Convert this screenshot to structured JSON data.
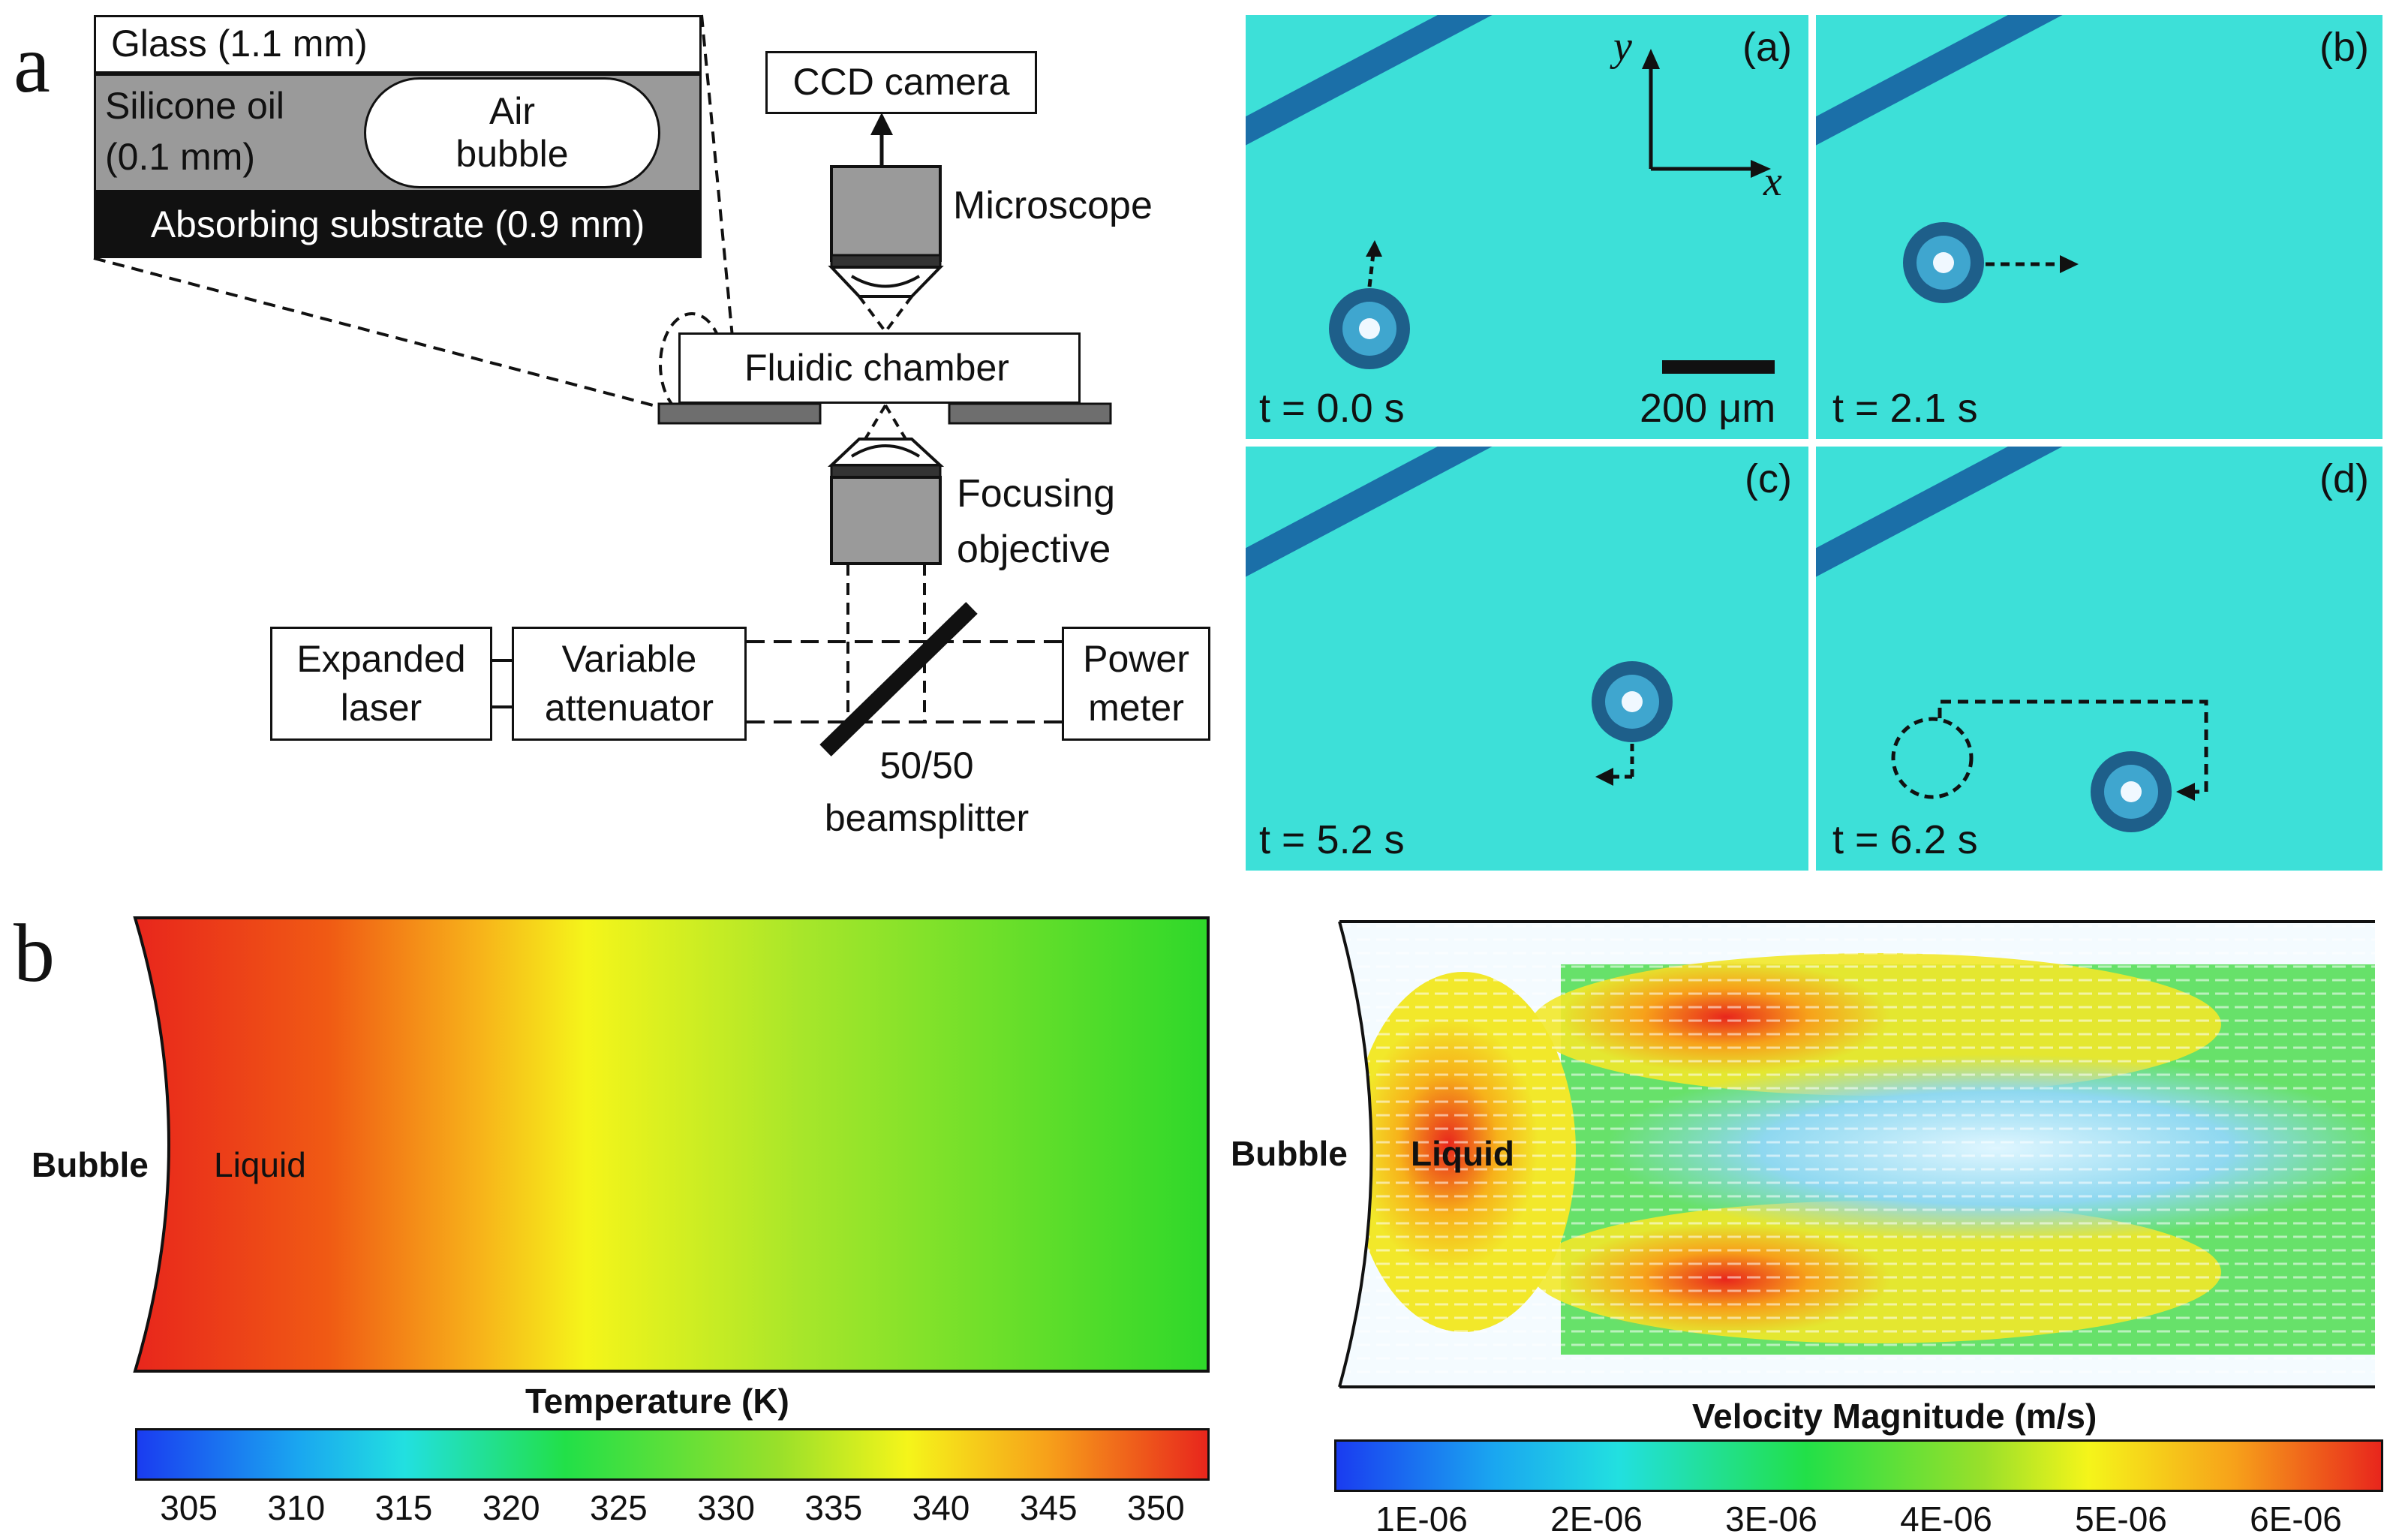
{
  "panel_labels": {
    "a": "a",
    "b": "b"
  },
  "schematic": {
    "glass": "Glass (1.1 mm)",
    "silicone_oil_line1": "Silicone oil",
    "silicone_oil_line2": "(0.1 mm)",
    "air_bubble_line1": "Air",
    "air_bubble_line2": "bubble",
    "substrate": "Absorbing substrate (0.9 mm)",
    "ccd_camera": "CCD camera",
    "microscope": "Microscope",
    "fluidic_chamber": "Fluidic chamber",
    "focusing_objective_line1": "Focusing",
    "focusing_objective_line2": "objective",
    "expanded_laser_line1": "Expanded",
    "expanded_laser_line2": "laser",
    "variable_attenuator_line1": "Variable",
    "variable_attenuator_line2": "attenuator",
    "power_meter_line1": "Power",
    "power_meter_line2": "meter",
    "beamsplitter_line1": "50/50",
    "beamsplitter_line2": "beamsplitter"
  },
  "frames": [
    {
      "label": "(a)",
      "time": "t = 0.0 s"
    },
    {
      "label": "(b)",
      "time": "t = 2.1 s"
    },
    {
      "label": "(c)",
      "time": "t = 5.2 s"
    },
    {
      "label": "(d)",
      "time": "t = 6.2 s"
    }
  ],
  "axes": {
    "y": "y",
    "x": "x"
  },
  "scale_bar": "200 μm",
  "temperature_plot": {
    "bubble": "Bubble",
    "liquid": "Liquid",
    "colorbar_title": "Temperature (K)",
    "ticks": [
      "305",
      "310",
      "315",
      "320",
      "325",
      "330",
      "335",
      "340",
      "345",
      "350"
    ]
  },
  "velocity_plot": {
    "bubble": "Bubble",
    "liquid": "Liquid",
    "colorbar_title": "Velocity Magnitude (m/s)",
    "ticks": [
      "1E-06",
      "2E-06",
      "3E-06",
      "4E-06",
      "5E-06",
      "6E-06"
    ]
  },
  "colors": {
    "tile_bg": "#3de0d8",
    "channel": "#1b6fa8",
    "bubble_ring": "#1e5f8a"
  }
}
